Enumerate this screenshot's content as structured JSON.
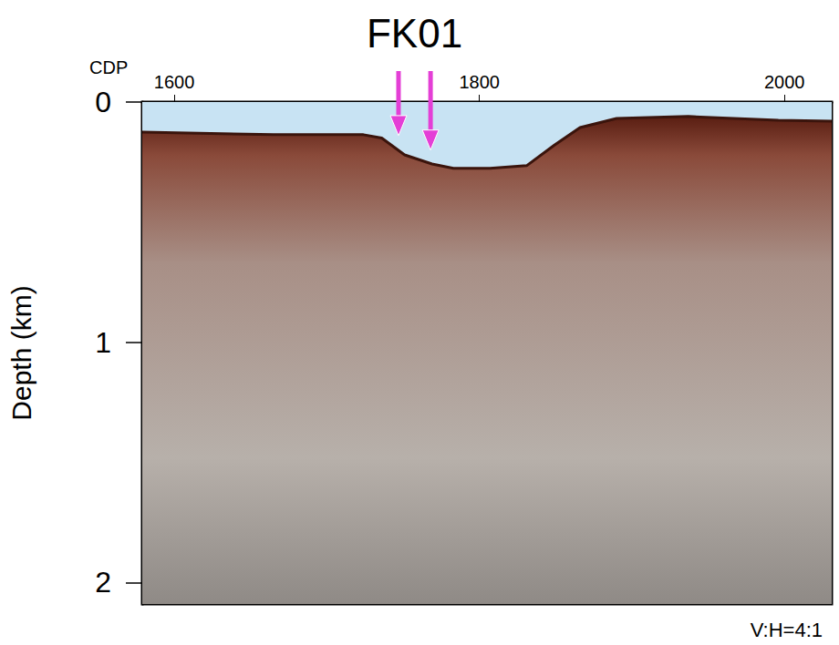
{
  "chart_data": {
    "type": "line",
    "x_label": "CDP",
    "y_label": "Depth (km)",
    "x": [
      1579,
      1665,
      1724,
      1736,
      1751,
      1769,
      1783,
      1807,
      1831,
      1849,
      1866,
      1890,
      1937,
      1996,
      2031
    ],
    "values": [
      0.125,
      0.136,
      0.136,
      0.15,
      0.22,
      0.258,
      0.276,
      0.276,
      0.265,
      0.18,
      0.106,
      0.068,
      0.06,
      0.076,
      0.08
    ],
    "xlim": [
      1579,
      2031
    ],
    "ylim": [
      0,
      2.09
    ],
    "xticks": [
      1600,
      1800,
      2000
    ],
    "yticks": [
      0,
      1,
      2
    ],
    "grid": false,
    "fault": {
      "label": "FK01",
      "arrows": [
        {
          "x": 1747,
          "y": 0.14
        },
        {
          "x": 1768,
          "y": 0.2
        }
      ]
    },
    "note": "V:H=4:1"
  }
}
